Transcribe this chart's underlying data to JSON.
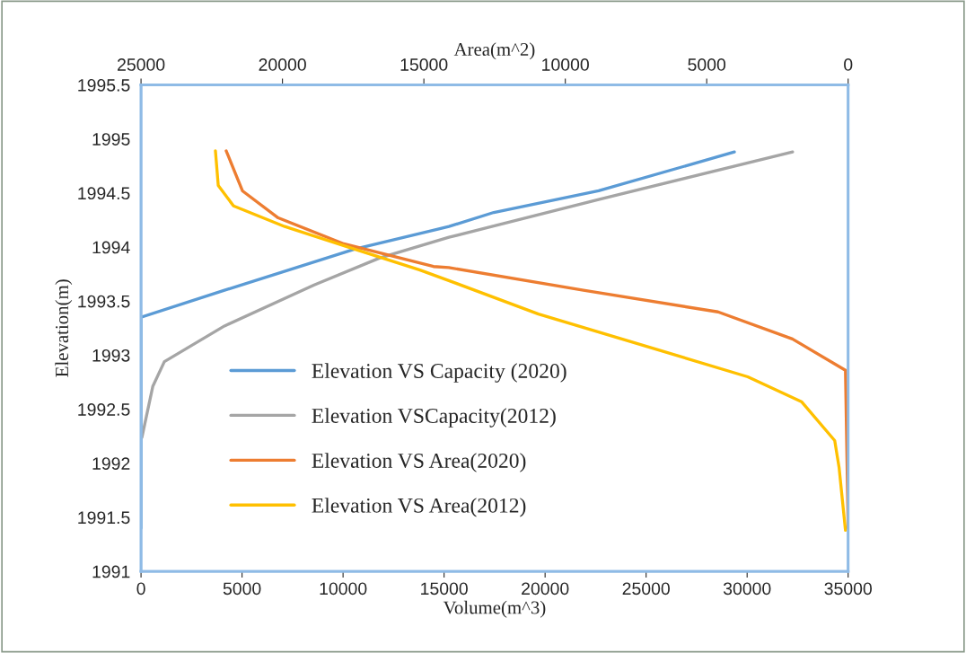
{
  "chart_data": {
    "type": "line",
    "xlabel": "Volume(m^3)",
    "ylabel": "Elevation(m)",
    "x2label": "Area(m^2)",
    "xlim": [
      0,
      35000
    ],
    "xticks": [
      0,
      5000,
      10000,
      15000,
      20000,
      25000,
      30000,
      35000
    ],
    "x2lim": [
      25000,
      0
    ],
    "x2ticks": [
      25000,
      20000,
      15000,
      10000,
      5000,
      0
    ],
    "ylim": [
      1991,
      1995.5
    ],
    "yticks": [
      1991,
      1991.5,
      1992,
      1992.5,
      1993,
      1993.5,
      1994,
      1994.5,
      1995,
      1995.5
    ],
    "grid": false,
    "legend": "left",
    "marker": "none",
    "line_style": "solid",
    "series": [
      {
        "name": "Elevation VS Capacity (2020)",
        "color": "#5b9bd5",
        "x": [
          0,
          0,
          4130,
          10570,
          15240,
          17460,
          22650,
          29370
        ],
        "values": [
          1991.4,
          1993.35,
          1993.6,
          1993.98,
          1994.19,
          1994.32,
          1994.52,
          1994.88
        ]
      },
      {
        "name": "Elevation VSCapacity(2012)",
        "color": "#a5a5a5",
        "x": [
          45,
          580,
          1155,
          4130,
          8570,
          11820,
          15240,
          22650,
          32250
        ],
        "values": [
          1992.24,
          1992.71,
          1992.94,
          1993.27,
          1993.65,
          1993.9,
          1994.09,
          1994.44,
          1994.88
        ]
      },
      {
        "name": "Elevation VS Area(2020)",
        "color": "#ed7d31",
        "axis": "x2",
        "x": [
          21990,
          21415,
          20150,
          17830,
          14660,
          14120,
          9360,
          4600,
          1970,
          95,
          0
        ],
        "values": [
          1994.89,
          1994.52,
          1994.27,
          1994.03,
          1993.82,
          1993.81,
          1993.6,
          1993.4,
          1993.15,
          1992.86,
          1991.4
        ]
      },
      {
        "name": "Elevation VS Area(2012)",
        "color": "#ffc000",
        "axis": "x2",
        "x": [
          22370,
          22270,
          21730,
          19920,
          17450,
          15160,
          14120,
          10950,
          6730,
          3550,
          1650,
          475,
          320,
          95
        ],
        "values": [
          1994.89,
          1994.57,
          1994.38,
          1994.19,
          1993.98,
          1993.79,
          1993.69,
          1993.38,
          1993.05,
          1992.8,
          1992.57,
          1992.21,
          1991.96,
          1991.38
        ]
      }
    ]
  }
}
